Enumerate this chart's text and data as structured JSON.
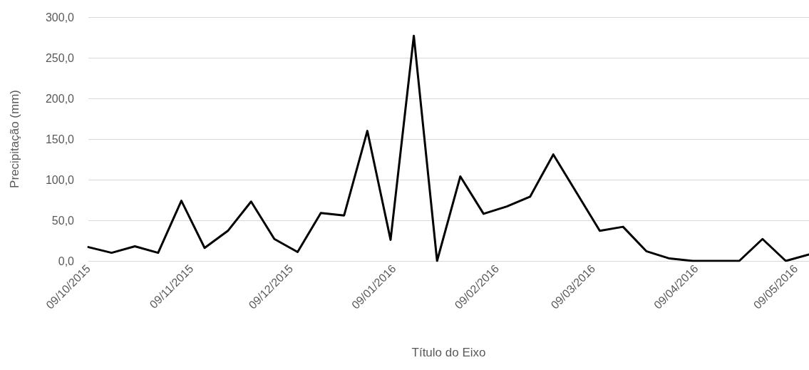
{
  "chart_data": {
    "type": "line",
    "xlabel": "Título do Eixo",
    "ylabel": "Precipitação (mm)",
    "x": [
      "2015-10-09",
      "2015-10-16",
      "2015-10-23",
      "2015-10-30",
      "2015-11-06",
      "2015-11-13",
      "2015-11-20",
      "2015-11-27",
      "2015-12-04",
      "2015-12-11",
      "2015-12-18",
      "2015-12-25",
      "2016-01-01",
      "2016-01-08",
      "2016-01-15",
      "2016-01-22",
      "2016-01-29",
      "2016-02-05",
      "2016-02-12",
      "2016-02-19",
      "2016-02-26",
      "2016-03-04",
      "2016-03-11",
      "2016-03-18",
      "2016-03-25",
      "2016-04-01",
      "2016-04-08",
      "2016-04-15",
      "2016-04-22",
      "2016-04-29",
      "2016-05-06",
      "2016-05-13"
    ],
    "series": [
      {
        "color": "#000000",
        "values": [
          17,
          10,
          18,
          10,
          74,
          16,
          37,
          73,
          27,
          11,
          59,
          56,
          160,
          26,
          277,
          0,
          104,
          58,
          67,
          79,
          131,
          84,
          37,
          42,
          12,
          3,
          0,
          0,
          0,
          27,
          0,
          8
        ]
      }
    ],
    "xlim": [
      "2015-10-09",
      "2016-05-13"
    ],
    "xticks": [
      {
        "value": "2015-10-09",
        "label": "09/10/2015"
      },
      {
        "value": "2015-11-09",
        "label": "09/11/2015"
      },
      {
        "value": "2015-12-09",
        "label": "09/12/2015"
      },
      {
        "value": "2016-01-09",
        "label": "09/01/2016"
      },
      {
        "value": "2016-02-09",
        "label": "09/02/2016"
      },
      {
        "value": "2016-03-09",
        "label": "09/03/2016"
      },
      {
        "value": "2016-04-09",
        "label": "09/04/2016"
      },
      {
        "value": "2016-05-09",
        "label": "09/05/2016"
      }
    ],
    "ylim": [
      0,
      300
    ],
    "yticks": [
      {
        "value": 0,
        "label": "0,0"
      },
      {
        "value": 50,
        "label": "50,0"
      },
      {
        "value": 100,
        "label": "100,0"
      },
      {
        "value": 150,
        "label": "150,0"
      },
      {
        "value": 200,
        "label": "200,0"
      },
      {
        "value": 250,
        "label": "250,0"
      },
      {
        "value": 300,
        "label": "300,0"
      }
    ],
    "grid": "y",
    "marker": "none",
    "line_style": "solid"
  }
}
